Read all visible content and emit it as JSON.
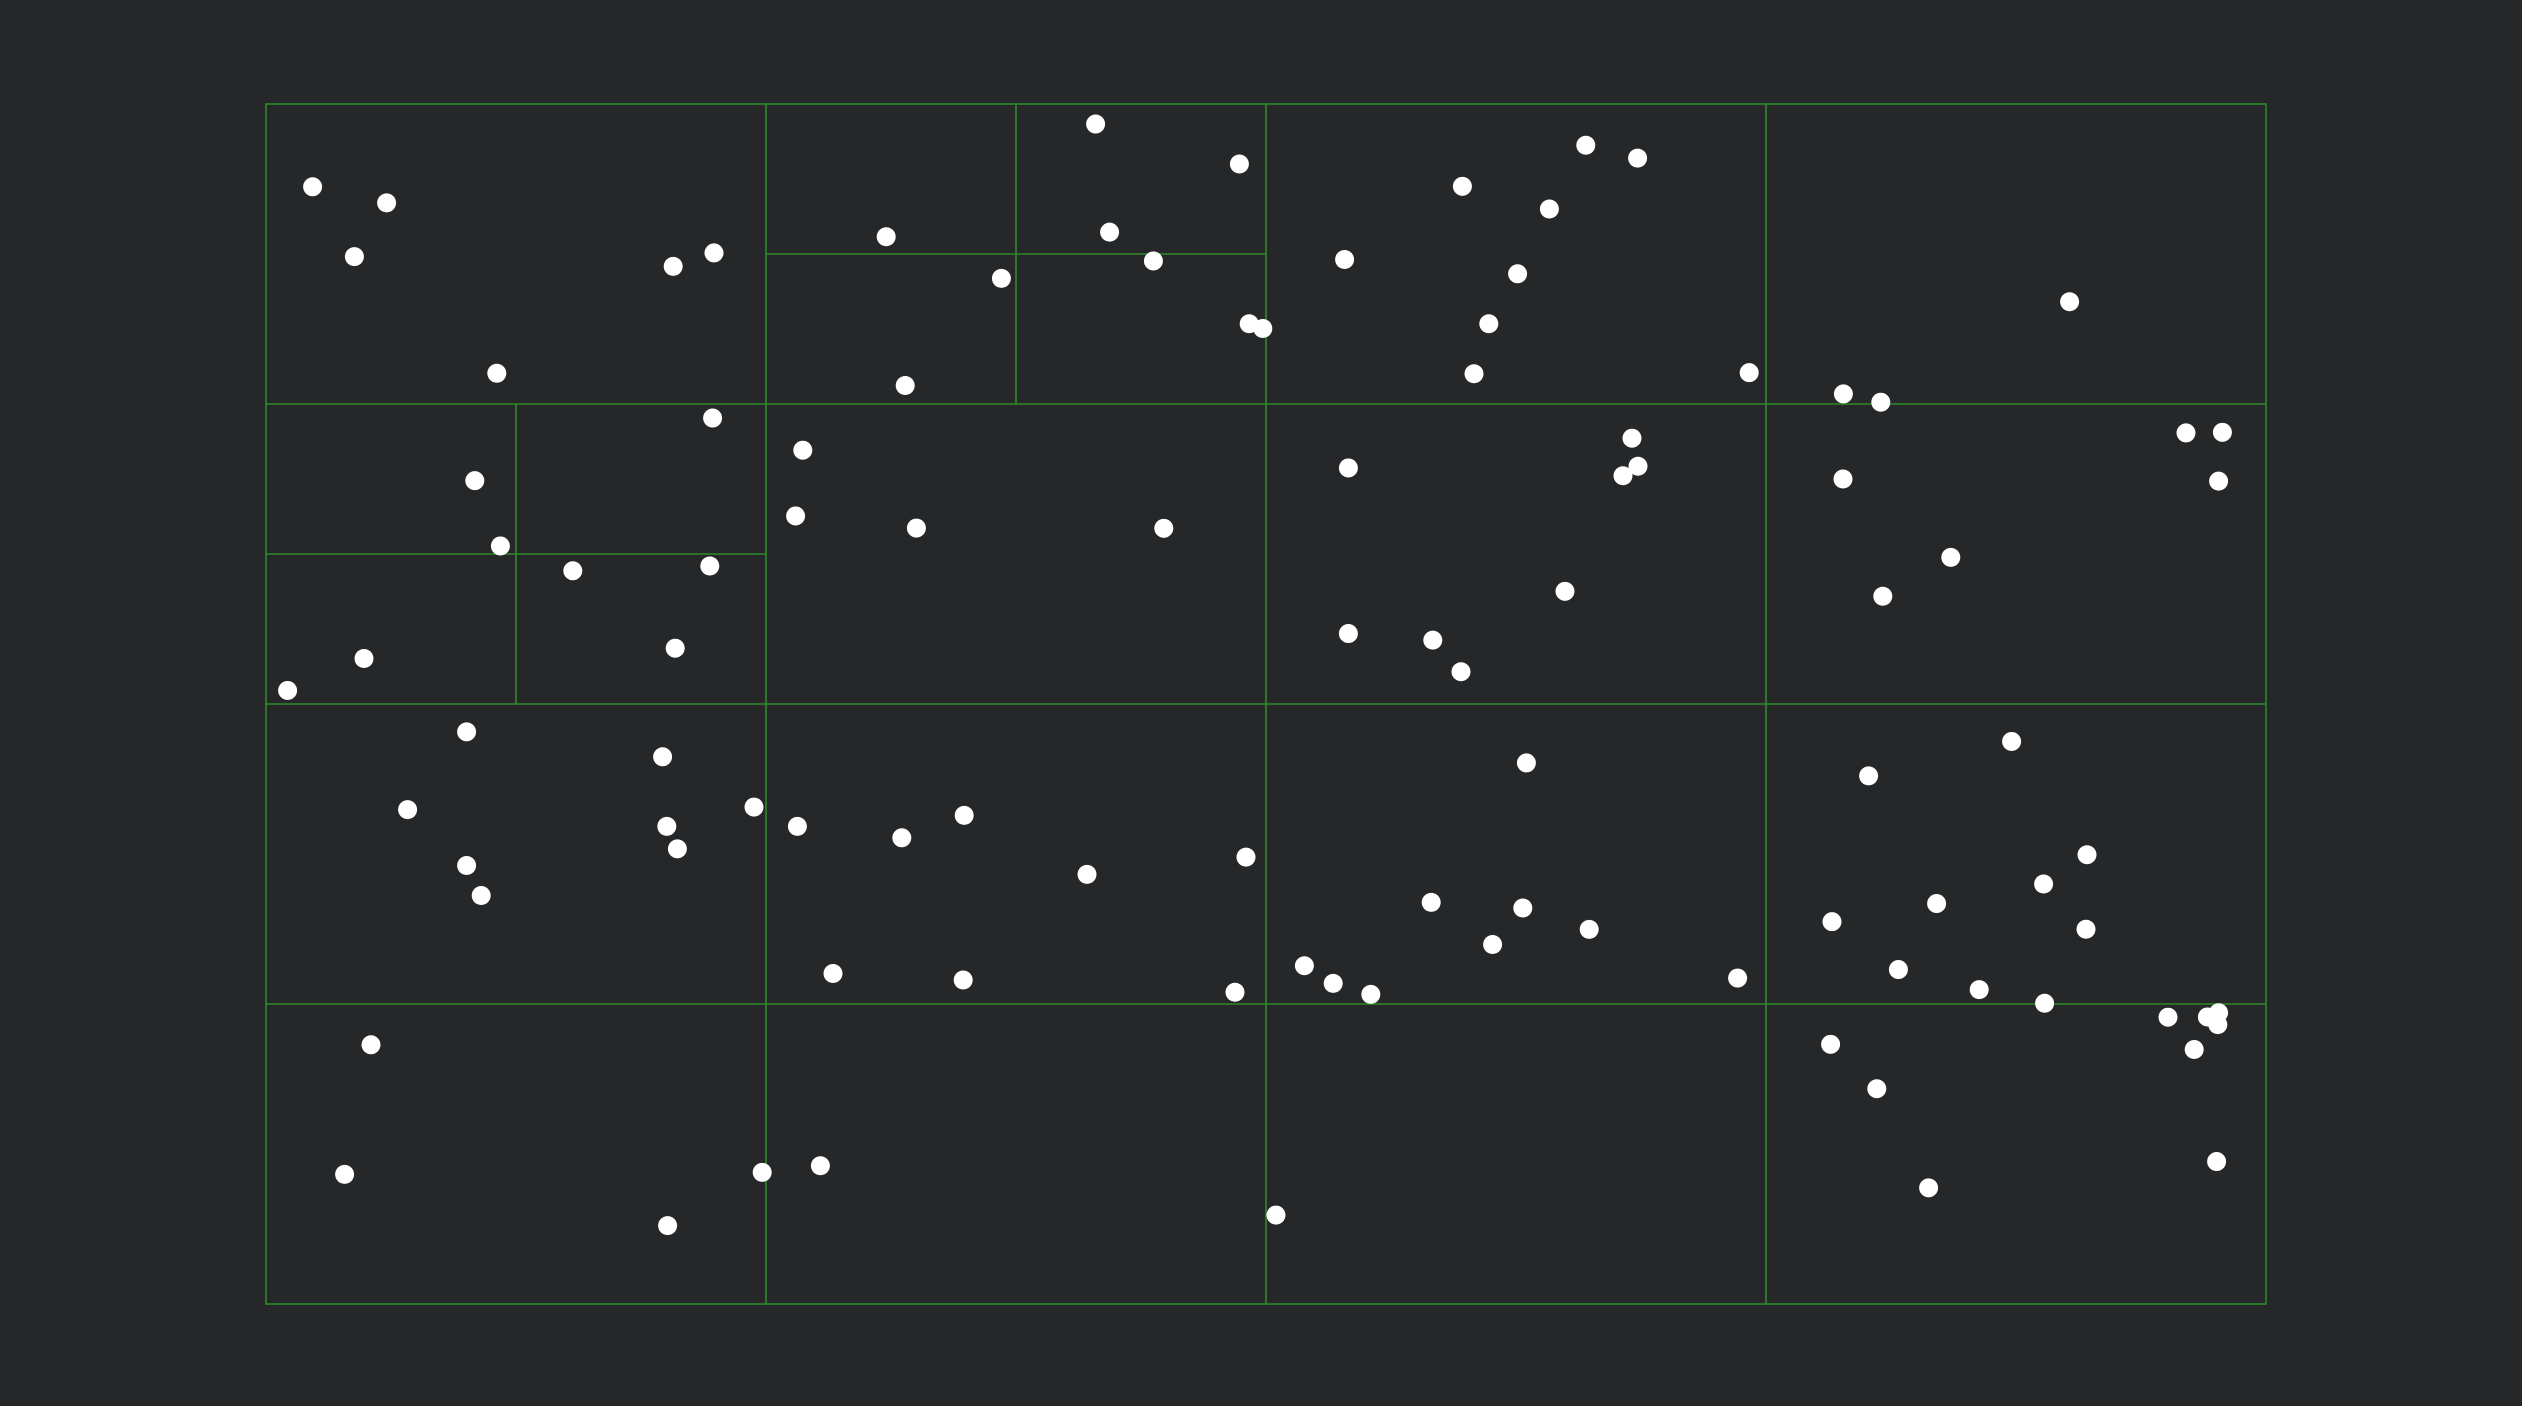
{
  "diagram": {
    "type": "quadtree-point-partition",
    "colors": {
      "background": "#252729",
      "grid_line": "#2f8a2a",
      "point": "#ffffff"
    },
    "domain": {
      "x": [
        0,
        1
      ],
      "y": [
        0,
        1
      ]
    },
    "rows": 4,
    "cols": 4,
    "subdivided_cells": [
      {
        "row": 0,
        "col": 1,
        "split": "quad"
      },
      {
        "row": 1,
        "col": 0,
        "split": "quad"
      }
    ],
    "points": [
      [
        0.0233,
        0.069
      ],
      [
        0.0442,
        0.1272
      ],
      [
        0.0603,
        0.0824
      ],
      [
        0.1154,
        0.2244
      ],
      [
        0.2036,
        0.1353
      ],
      [
        0.224,
        0.1241
      ],
      [
        0.3101,
        0.1106
      ],
      [
        0.3196,
        0.2346
      ],
      [
        0.3677,
        0.1453
      ],
      [
        0.4148,
        0.0167
      ],
      [
        0.4218,
        0.1068
      ],
      [
        0.4437,
        0.1308
      ],
      [
        0.4867,
        0.05
      ],
      [
        0.4916,
        0.1831
      ],
      [
        0.4984,
        0.1871
      ],
      [
        0.5393,
        0.1296
      ],
      [
        0.5982,
        0.0686
      ],
      [
        0.604,
        0.2248
      ],
      [
        0.6114,
        0.1831
      ],
      [
        0.6258,
        0.1415
      ],
      [
        0.6417,
        0.0875
      ],
      [
        0.6599,
        0.0344
      ],
      [
        0.6858,
        0.0451
      ],
      [
        0.7416,
        0.2239
      ],
      [
        0.7887,
        0.2416
      ],
      [
        0.9018,
        0.1648
      ],
      [
        0.1044,
        0.3139
      ],
      [
        0.1172,
        0.3683
      ],
      [
        0.1534,
        0.389
      ],
      [
        0.2233,
        0.2617
      ],
      [
        0.2219,
        0.385
      ],
      [
        0.049,
        0.4621
      ],
      [
        0.0108,
        0.4887
      ],
      [
        0.2046,
        0.4535
      ],
      [
        0.2684,
        0.2885
      ],
      [
        0.2648,
        0.3433
      ],
      [
        0.3252,
        0.3534
      ],
      [
        0.4489,
        0.3536
      ],
      [
        0.5412,
        0.3033
      ],
      [
        0.6785,
        0.3098
      ],
      [
        0.683,
        0.2785
      ],
      [
        0.686,
        0.3019
      ],
      [
        0.5412,
        0.4413
      ],
      [
        0.5834,
        0.4468
      ],
      [
        0.5975,
        0.4731
      ],
      [
        0.6495,
        0.4061
      ],
      [
        0.8074,
        0.2485
      ],
      [
        0.7885,
        0.3125
      ],
      [
        0.8084,
        0.4102
      ],
      [
        0.8424,
        0.3778
      ],
      [
        0.9782,
        0.2736
      ],
      [
        0.96,
        0.2741
      ],
      [
        0.9763,
        0.3143
      ],
      [
        0.1003,
        0.5232
      ],
      [
        0.0708,
        0.588
      ],
      [
        0.1003,
        0.6346
      ],
      [
        0.1076,
        0.6596
      ],
      [
        0.1983,
        0.544
      ],
      [
        0.2004,
        0.602
      ],
      [
        0.2057,
        0.6207
      ],
      [
        0.244,
        0.5859
      ],
      [
        0.2657,
        0.602
      ],
      [
        0.3179,
        0.6115
      ],
      [
        0.3491,
        0.5928
      ],
      [
        0.4105,
        0.642
      ],
      [
        0.3486,
        0.73
      ],
      [
        0.2835,
        0.7246
      ],
      [
        0.49,
        0.6276
      ],
      [
        0.4845,
        0.7402
      ],
      [
        0.5192,
        0.7181
      ],
      [
        0.5336,
        0.7328
      ],
      [
        0.5524,
        0.742
      ],
      [
        0.5826,
        0.6653
      ],
      [
        0.6133,
        0.7004
      ],
      [
        0.6302,
        0.5491
      ],
      [
        0.6616,
        0.6878
      ],
      [
        0.6284,
        0.67
      ],
      [
        0.7358,
        0.7284
      ],
      [
        0.8728,
        0.5312
      ],
      [
        0.8013,
        0.5599
      ],
      [
        0.8888,
        0.65
      ],
      [
        0.783,
        0.6814
      ],
      [
        0.8566,
        0.738
      ],
      [
        0.8353,
        0.6663
      ],
      [
        0.9105,
        0.6256
      ],
      [
        0.91,
        0.6877
      ],
      [
        0.8893,
        0.7494
      ],
      [
        0.951,
        0.761
      ],
      [
        0.9763,
        0.7573
      ],
      [
        0.9707,
        0.7608
      ],
      [
        0.8162,
        0.7213
      ],
      [
        0.0525,
        0.784
      ],
      [
        0.0393,
        0.892
      ],
      [
        0.2008,
        0.9347
      ],
      [
        0.2481,
        0.8903
      ],
      [
        0.2772,
        0.8848
      ],
      [
        0.505,
        0.9259
      ],
      [
        0.7823,
        0.7836
      ],
      [
        0.8054,
        0.8206
      ],
      [
        0.8313,
        0.9032
      ],
      [
        0.9759,
        0.7672
      ],
      [
        0.9641,
        0.7879
      ],
      [
        0.9753,
        0.8813
      ]
    ]
  }
}
